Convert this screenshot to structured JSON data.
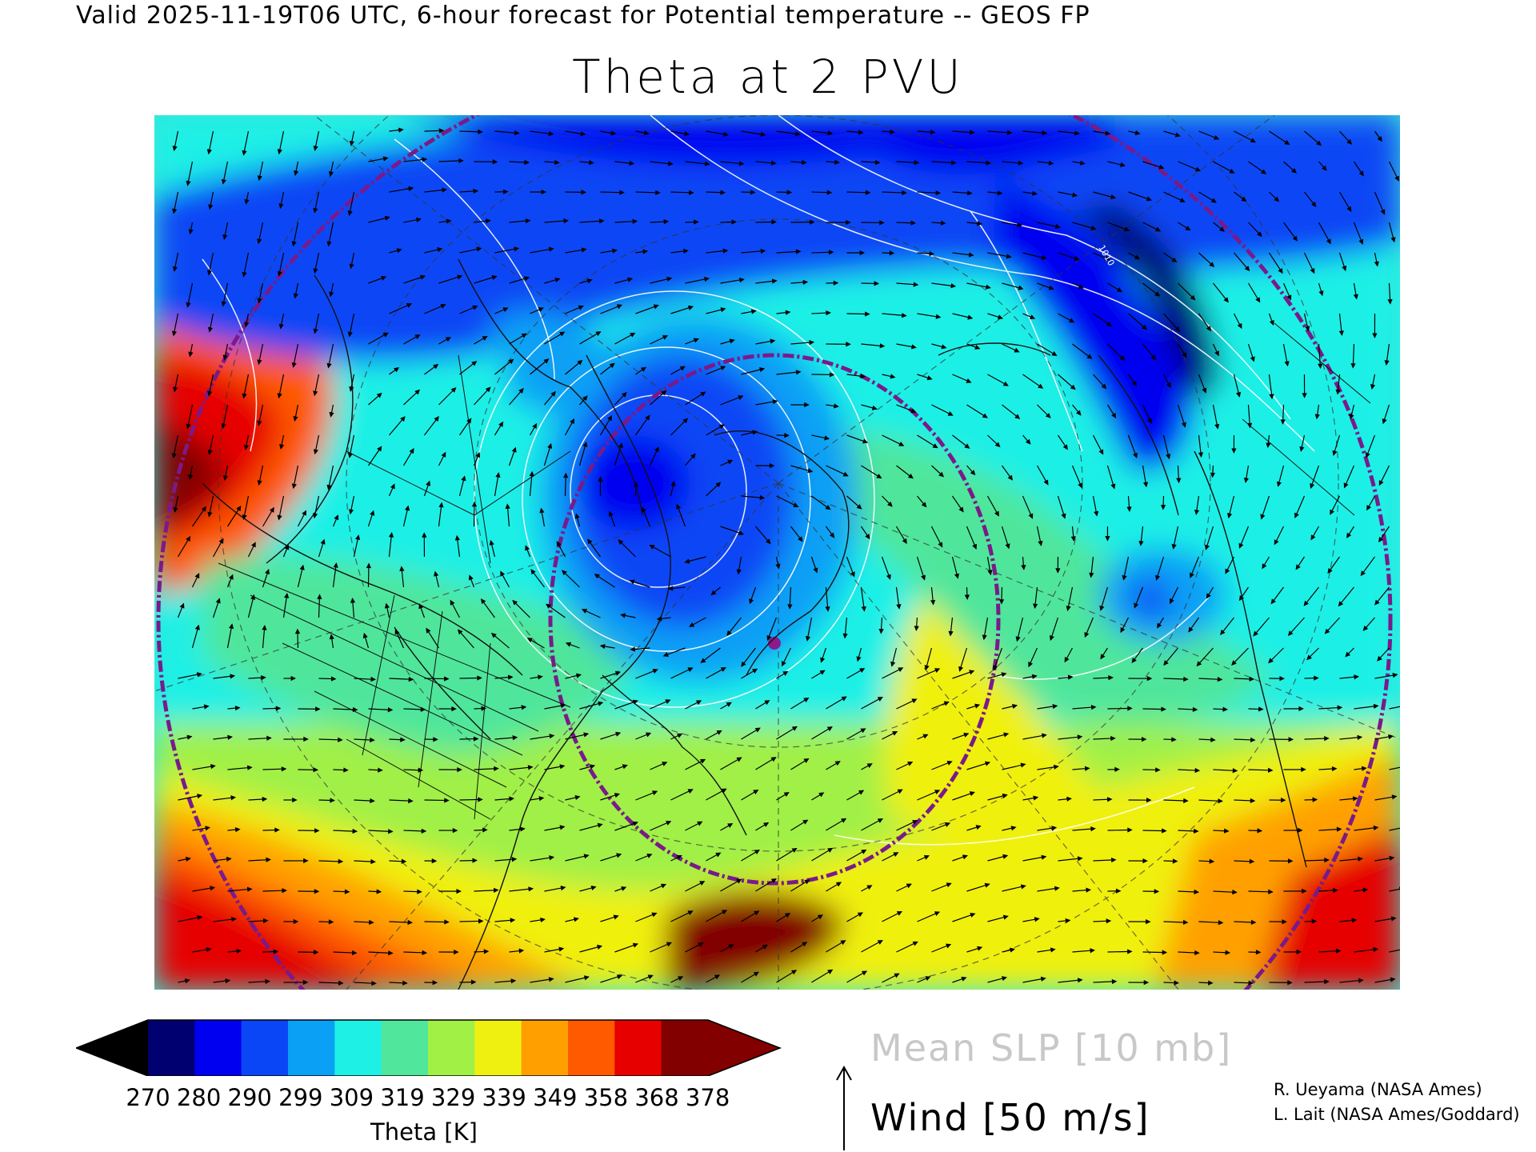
{
  "header": {
    "valid_line": "Valid 2025-11-19T06 UTC, 6-hour forecast for Potential temperature -- GEOS FP"
  },
  "title": "Theta at 2 PVU",
  "colorbar": {
    "labels": [
      "270",
      "280",
      "290",
      "299",
      "309",
      "319",
      "329",
      "339",
      "349",
      "358",
      "368",
      "378"
    ],
    "title": "Theta [K]",
    "colors": [
      "#000070",
      "#0000f0",
      "#0a46f5",
      "#0aa0f5",
      "#1ef0e6",
      "#50e69b",
      "#a0f046",
      "#f0f010",
      "#ffa000",
      "#ff5a00",
      "#e60000",
      "#820000"
    ],
    "under_color": "#000000",
    "over_color": "#820000"
  },
  "legend": {
    "slp": "Mean SLP [10 mb]",
    "wind": "Wind [50 m/s]"
  },
  "credits": {
    "line1": "R. Ueyama (NASA Ames)",
    "line2": "L. Lait (NASA Ames/Goddard)"
  },
  "map": {
    "slp_contour_label": "1010",
    "marker_color": "#8b1a8b",
    "ring_color": "#7a1a8a",
    "slp_contour_color": "#ffffff"
  }
}
